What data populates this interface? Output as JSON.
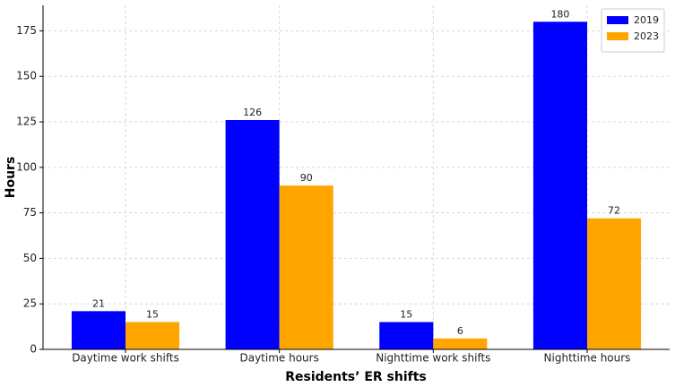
{
  "chart_data": {
    "type": "bar",
    "x_label": "Residents’ ER shifts",
    "y_label": "Hours",
    "categories": [
      "Daytime work shifts",
      "Daytime hours",
      "Nighttime work shifts",
      "Nighttime hours"
    ],
    "series": [
      {
        "name": "2019",
        "color": "#0000ff",
        "values": [
          21,
          126,
          15,
          180
        ]
      },
      {
        "name": "2023",
        "color": "#ffa500",
        "values": [
          15,
          90,
          6,
          72
        ]
      }
    ],
    "ylim": [
      0,
      189
    ],
    "yticks": [
      0,
      25,
      50,
      75,
      100,
      125,
      150,
      175
    ],
    "grid": true,
    "legend": "upper right"
  }
}
